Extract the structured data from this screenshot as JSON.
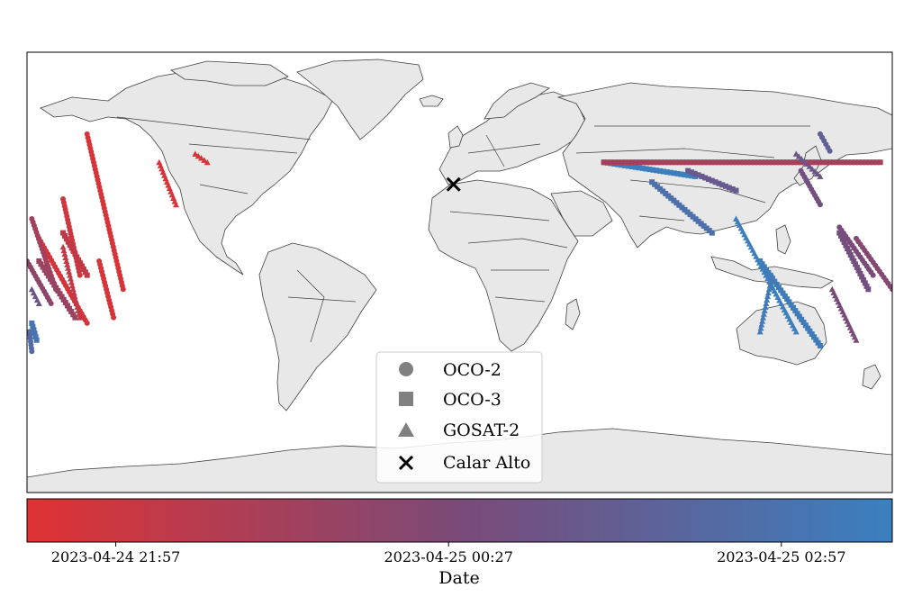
{
  "map": {
    "type": "world-map-satellite-tracks",
    "projection": "plate-carree",
    "land_color": "#e8e8e8",
    "border_color": "#404040",
    "site": {
      "name": "Calar Alto",
      "lon": -2.55,
      "lat": 37.22
    }
  },
  "legend": {
    "placement": "lower-center",
    "items": [
      {
        "label": "OCO-2",
        "marker": "circle"
      },
      {
        "label": "OCO-3",
        "marker": "square"
      },
      {
        "label": "GOSAT-2",
        "marker": "triangle"
      },
      {
        "label": "Calar Alto",
        "marker": "x"
      }
    ]
  },
  "colorbar": {
    "label": "Date",
    "start_color": "#e03232",
    "mid_color": "#7a4a78",
    "end_color": "#3a80c0",
    "range": [
      "2023-04-24 21:17",
      "2023-04-25 03:47"
    ],
    "ticks": [
      "2023-04-24 21:57",
      "2023-04-25 00:27",
      "2023-04-25 02:57"
    ],
    "tick_positions": [
      0.1026,
      0.4872,
      0.8718
    ]
  },
  "chart_data": {
    "type": "scatter",
    "series": [
      {
        "name": "OCO-2",
        "marker": "circle",
        "tracks": [
          {
            "start": [
              -155,
              55
            ],
            "end": [
              -140,
              0
            ],
            "t": 0.05
          },
          {
            "start": [
              -175,
              18
            ],
            "end": [
              -155,
              -12
            ],
            "t": 0.06
          },
          {
            "start": [
              -150,
              10
            ],
            "end": [
              -144,
              -10
            ],
            "t": 0.05
          },
          {
            "start": [
              -165,
              32
            ],
            "end": [
              -158,
              5
            ],
            "t": 0.1
          },
          {
            "start": [
              -178,
              25
            ],
            "end": [
              -168,
              0
            ],
            "t": 0.3
          },
          {
            "start": [
              -180,
              10
            ],
            "end": [
              -170,
              -5
            ],
            "t": 0.4
          },
          {
            "start": [
              -179,
              -15
            ],
            "end": [
              -178,
              -22
            ],
            "t": 0.8
          },
          {
            "start": [
              142,
              42
            ],
            "end": [
              150,
              30
            ],
            "t": 0.55
          },
          {
            "start": [
              158,
              22
            ],
            "end": [
              172,
              5
            ],
            "t": 0.5
          },
          {
            "start": [
              165,
              18
            ],
            "end": [
              180,
              0
            ],
            "t": 0.45
          },
          {
            "start": [
              150,
              55
            ],
            "end": [
              154,
              49
            ],
            "t": 0.7
          }
        ]
      },
      {
        "name": "OCO-3",
        "marker": "square",
        "tracks": [
          {
            "start": [
              60,
              45
            ],
            "end": [
              98,
              40
            ],
            "t": 0.98
          },
          {
            "start": [
              80,
              38
            ],
            "end": [
              105,
              20
            ],
            "t": 0.85
          },
          {
            "start": [
              95,
              42
            ],
            "end": [
              115,
              35
            ],
            "t": 0.65
          },
          {
            "start": [
              60,
              45
            ],
            "end": [
              175,
              45
            ],
            "t": 0.3
          },
          {
            "start": [
              125,
              10
            ],
            "end": [
              150,
              -20
            ],
            "t": 0.95
          },
          {
            "start": [
              -165,
              20
            ],
            "end": [
              -155,
              5
            ],
            "t": 0.15
          },
          {
            "start": [
              -175,
              10
            ],
            "end": [
              -160,
              -10
            ],
            "t": 0.35
          },
          {
            "start": [
              158,
              20
            ],
            "end": [
              170,
              0
            ],
            "t": 0.55
          },
          {
            "start": [
              -178,
              -12
            ],
            "end": [
              -176,
              -18
            ],
            "t": 0.9
          }
        ]
      },
      {
        "name": "GOSAT-2",
        "marker": "triangle",
        "tracks": [
          {
            "start": [
              -125,
              45
            ],
            "end": [
              -118,
              30
            ],
            "t": 0.05
          },
          {
            "start": [
              -110,
              48
            ],
            "end": [
              -105,
              45
            ],
            "t": 0.05
          },
          {
            "start": [
              115,
              25
            ],
            "end": [
              140,
              -15
            ],
            "t": 0.98
          },
          {
            "start": [
              130,
              5
            ],
            "end": [
              125,
              -15
            ],
            "t": 0.95
          },
          {
            "start": [
              140,
              48
            ],
            "end": [
              150,
              40
            ],
            "t": 0.6
          },
          {
            "start": [
              155,
              0
            ],
            "end": [
              165,
              -18
            ],
            "t": 0.5
          },
          {
            "start": [
              -165,
              15
            ],
            "end": [
              -158,
              -10
            ],
            "t": 0.15
          },
          {
            "start": [
              -178,
              0
            ],
            "end": [
              -175,
              -5
            ],
            "t": 0.6
          }
        ]
      }
    ]
  }
}
